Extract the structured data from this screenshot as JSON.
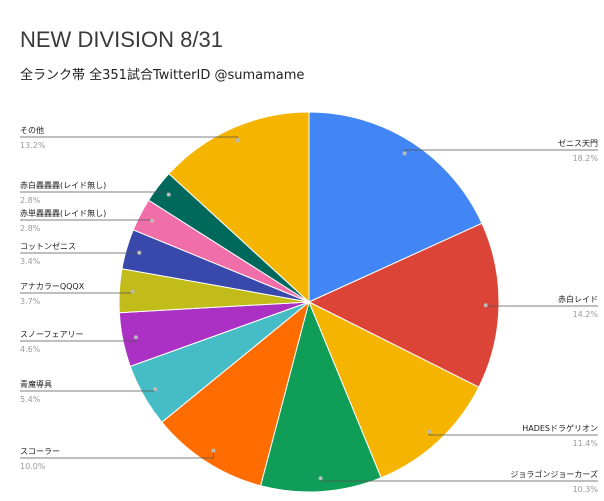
{
  "chart_data": {
    "type": "pie",
    "title": "NEW DIVISION 8/31",
    "subtitle": "全ランク帯 全351試合TwitterID @sumamame",
    "slices": [
      {
        "label": "ゼニス天門",
        "value": 18.2,
        "pct_label": "18.2%",
        "color": "#4285f4"
      },
      {
        "label": "赤白レイド",
        "value": 14.2,
        "pct_label": "14.2%",
        "color": "#db4437"
      },
      {
        "label": "HADESドラゲリオン",
        "value": 11.4,
        "pct_label": "11.4%",
        "color": "#f4b400"
      },
      {
        "label": "ジョラゴンジョーカーズ",
        "value": 10.3,
        "pct_label": "10.3%",
        "color": "#0f9d58"
      },
      {
        "label": "スコーラー",
        "value": 10.0,
        "pct_label": "10.0%",
        "color": "#ff6d00"
      },
      {
        "label": "青魔導具",
        "value": 5.4,
        "pct_label": "5.4%",
        "color": "#46bdc6"
      },
      {
        "label": "スノーフェアリー",
        "value": 4.6,
        "pct_label": "4.6%",
        "color": "#ab30c4"
      },
      {
        "label": "アナカラーQQQX",
        "value": 3.7,
        "pct_label": "3.7%",
        "color": "#c2bc1b"
      },
      {
        "label": "コットンゼニス",
        "value": 3.4,
        "pct_label": "3.4%",
        "color": "#3949ab"
      },
      {
        "label": "赤単轟轟轟(レイド無し)",
        "value": 2.8,
        "pct_label": "2.8%",
        "color": "#f06fa8"
      },
      {
        "label": "赤白轟轟轟(レイド無し)",
        "value": 2.8,
        "pct_label": "2.8%",
        "color": "#00695c"
      },
      {
        "label": "その他",
        "value": 13.2,
        "pct_label": "13.2%",
        "color": "#f4b400"
      }
    ]
  }
}
